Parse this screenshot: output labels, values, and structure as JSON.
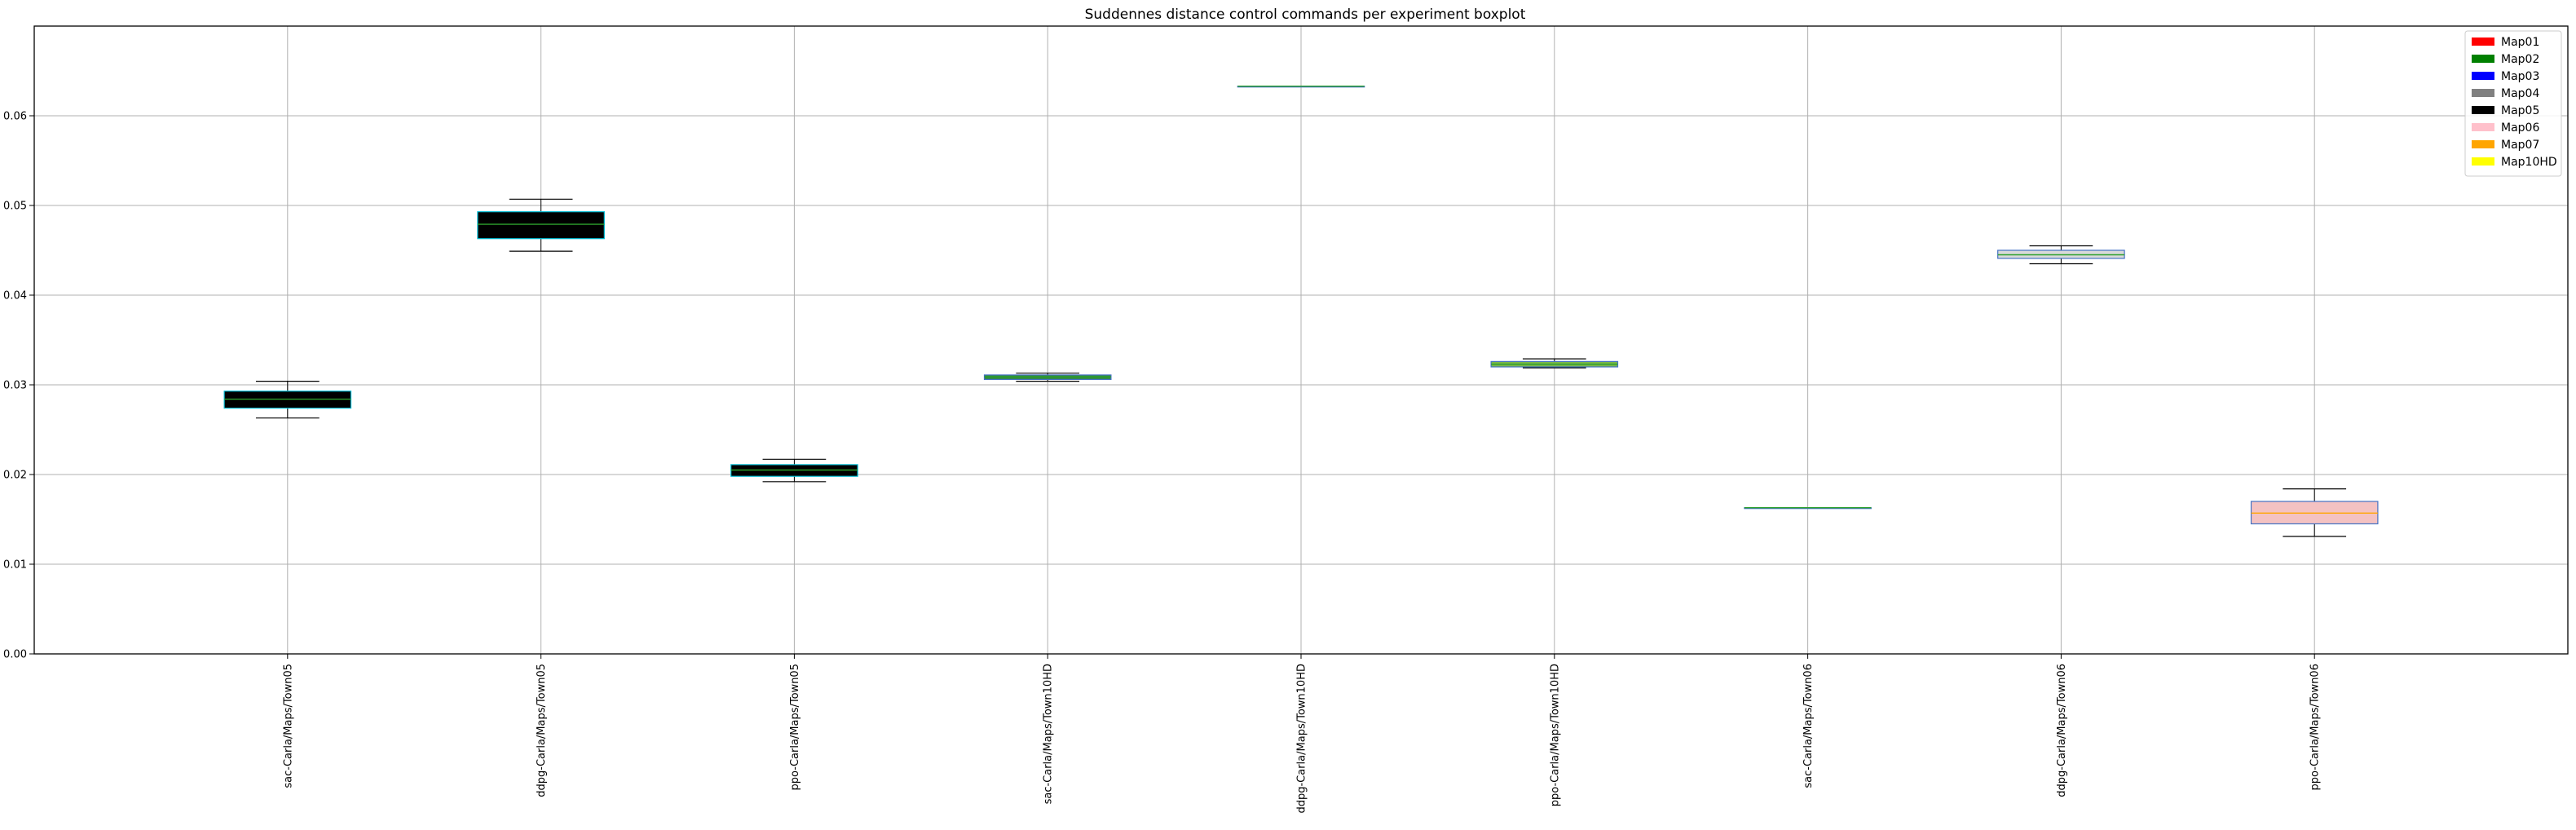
{
  "chart_data": {
    "type": "boxplot",
    "title": "Suddennes distance control commands per experiment boxplot",
    "xlabel": "",
    "ylabel": "",
    "ylim": [
      0,
      0.07
    ],
    "yticks": [
      0.0,
      0.01,
      0.02,
      0.03,
      0.04,
      0.05,
      0.06
    ],
    "ytick_labels": [
      "0.00",
      "0.01",
      "0.02",
      "0.03",
      "0.04",
      "0.05",
      "0.06"
    ],
    "grid": true,
    "legend_position": "top-right",
    "legend": [
      {
        "label": "Map01",
        "color": "#ff0000"
      },
      {
        "label": "Map02",
        "color": "#008000"
      },
      {
        "label": "Map03",
        "color": "#0000ff"
      },
      {
        "label": "Map04",
        "color": "#808080"
      },
      {
        "label": "Map05",
        "color": "#000000"
      },
      {
        "label": "Map06",
        "color": "#ffc0cb"
      },
      {
        "label": "Map07",
        "color": "#ffa500"
      },
      {
        "label": "Map10HD",
        "color": "#ffff00"
      }
    ],
    "categories": [
      "sac-Carla/Maps/Town05",
      "ddpg-Carla/Maps/Town05",
      "ppo-Carla/Maps/Town05",
      "sac-Carla/Maps/Town10HD",
      "ddpg-Carla/Maps/Town10HD",
      "ppo-Carla/Maps/Town10HD",
      "sac-Carla/Maps/Town06",
      "ddpg-Carla/Maps/Town06",
      "ppo-Carla/Maps/Town06"
    ],
    "boxes": [
      {
        "category": "sac-Carla/Maps/Town05",
        "map": "Map05",
        "fill": "#000000",
        "edge": "#00bcd4",
        "median_color": "#2ca02c",
        "whislo": 0.0263,
        "q1": 0.0274,
        "median": 0.0284,
        "q3": 0.0293,
        "whishi": 0.0304
      },
      {
        "category": "ddpg-Carla/Maps/Town05",
        "map": "Map05",
        "fill": "#000000",
        "edge": "#00bcd4",
        "median_color": "#2ca02c",
        "whislo": 0.0449,
        "q1": 0.0463,
        "median": 0.0479,
        "q3": 0.0493,
        "whishi": 0.0507
      },
      {
        "category": "ppo-Carla/Maps/Town05",
        "map": "Map05",
        "fill": "#000000",
        "edge": "#00bcd4",
        "median_color": "#2ca02c",
        "whislo": 0.0192,
        "q1": 0.0198,
        "median": 0.0205,
        "q3": 0.0211,
        "whishi": 0.0217
      },
      {
        "category": "sac-Carla/Maps/Town10HD",
        "map": "Map02",
        "fill": "#2e8b3a",
        "edge": "#4472c4",
        "median_color": "#2ca02c",
        "whislo": 0.0304,
        "q1": 0.0306,
        "median": 0.0309,
        "q3": 0.0311,
        "whishi": 0.0313
      },
      {
        "category": "ddpg-Carla/Maps/Town10HD",
        "map": "Map02",
        "fill": "#2e8b3a",
        "edge": "#4472c4",
        "median_color": "#2ca02c",
        "whislo": 0.0633,
        "q1": 0.0633,
        "median": 0.0633,
        "q3": 0.0633,
        "whishi": 0.0633
      },
      {
        "category": "ppo-Carla/Maps/Town10HD",
        "map": "Map07",
        "fill": "#7ab648",
        "edge": "#4472c4",
        "median_color": "#2ca02c",
        "whislo": 0.0319,
        "q1": 0.032,
        "median": 0.0323,
        "q3": 0.0326,
        "whishi": 0.0329
      },
      {
        "category": "sac-Carla/Maps/Town06",
        "map": "Map02",
        "fill": "#2e8b3a",
        "edge": "#4472c4",
        "median_color": "#2ca02c",
        "whislo": 0.0163,
        "q1": 0.0163,
        "median": 0.0163,
        "q3": 0.0163,
        "whishi": 0.0163
      },
      {
        "category": "ddpg-Carla/Maps/Town06",
        "map": "Map04",
        "fill": "#d9d9d9",
        "edge": "#4472c4",
        "median_color": "#2ca02c",
        "whislo": 0.0435,
        "q1": 0.0441,
        "median": 0.0445,
        "q3": 0.045,
        "whishi": 0.0455
      },
      {
        "category": "ppo-Carla/Maps/Town06",
        "map": "Map06",
        "fill": "#f4c2c2",
        "edge": "#4472c4",
        "median_color": "#ffa500",
        "whislo": 0.0131,
        "q1": 0.0145,
        "median": 0.0157,
        "q3": 0.017,
        "whishi": 0.0184
      }
    ]
  }
}
